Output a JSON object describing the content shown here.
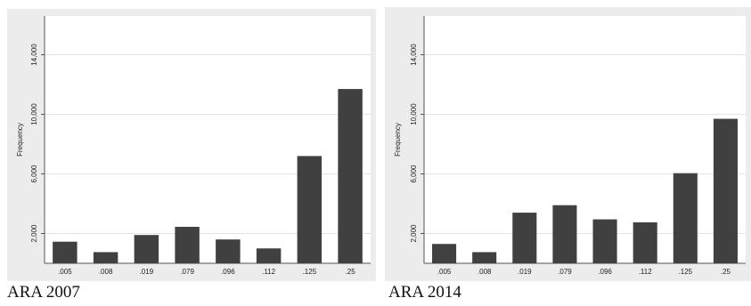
{
  "colors": {
    "bar": "#404040",
    "outer_bg": "#ececec",
    "plot_bg": "#ffffff",
    "grid": "#e4e4e4",
    "axis": "#555555",
    "text": "#222222"
  },
  "chart_data": [
    {
      "type": "bar",
      "caption": "ARA 2007",
      "title": "",
      "xlabel": "",
      "ylabel": "Frequency",
      "categories": [
        ".005",
        ".008",
        ".019",
        ".079",
        ".096",
        ".112",
        ".125",
        ".25"
      ],
      "values": [
        1450,
        750,
        1900,
        2450,
        1600,
        1000,
        7200,
        11700
      ],
      "yticks": [
        2000,
        6000,
        10000,
        14000
      ],
      "ytick_labels": [
        "2,000",
        "6,000",
        "10,000",
        "14,000"
      ],
      "ylim": [
        0,
        16600
      ],
      "grid": true
    },
    {
      "type": "bar",
      "caption": "ARA 2014",
      "title": "",
      "xlabel": "",
      "ylabel": "Frequency",
      "categories": [
        ".005",
        ".008",
        ".019",
        ".079",
        ".096",
        ".112",
        ".125",
        ".25"
      ],
      "values": [
        1300,
        750,
        3400,
        3900,
        2950,
        2750,
        6050,
        9700
      ],
      "yticks": [
        2000,
        6000,
        10000,
        14000
      ],
      "ytick_labels": [
        "2,000",
        "6,000",
        "10,000",
        "14,000"
      ],
      "ylim": [
        0,
        16600
      ],
      "grid": true
    }
  ]
}
